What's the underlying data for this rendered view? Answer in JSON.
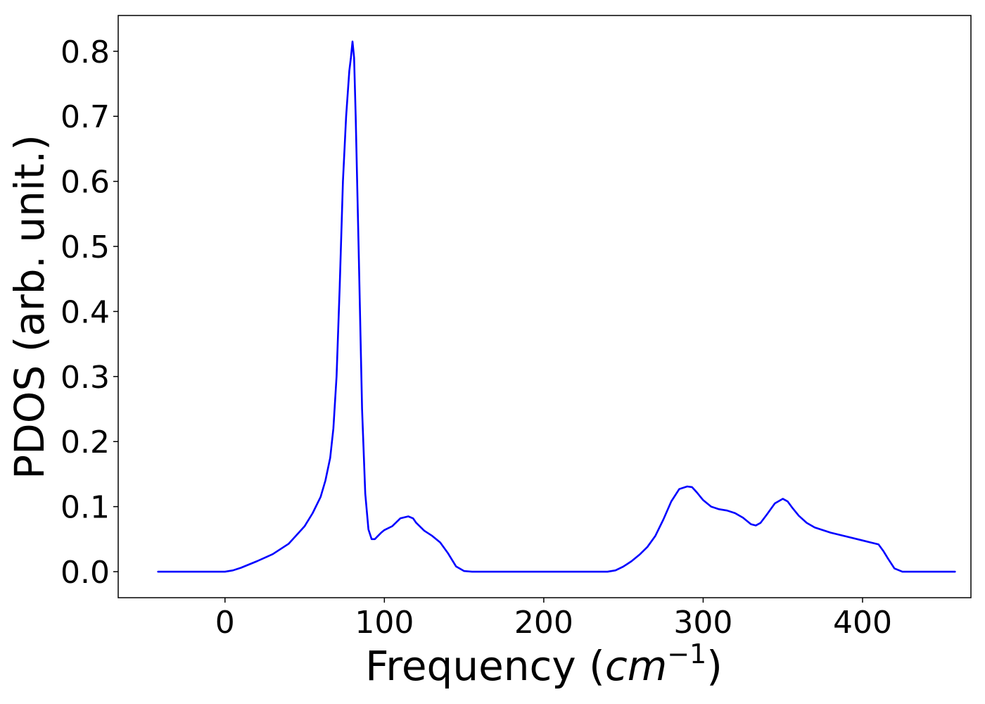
{
  "chart_data": {
    "type": "line",
    "title": "",
    "xlabel_prefix": "Frequency (",
    "xlabel_var": "cm",
    "xlabel_sup": "−1",
    "xlabel_suffix": ")",
    "ylabel": "PDOS (arb. unit.)",
    "xlim": [
      -67,
      468
    ],
    "ylim": [
      -0.04,
      0.855
    ],
    "xticks": [
      0,
      100,
      200,
      300,
      400
    ],
    "xtick_labels": [
      "0",
      "100",
      "200",
      "300",
      "400"
    ],
    "yticks": [
      0.0,
      0.1,
      0.2,
      0.3,
      0.4,
      0.5,
      0.6,
      0.7,
      0.8
    ],
    "ytick_labels": [
      "0.0",
      "0.1",
      "0.2",
      "0.3",
      "0.4",
      "0.5",
      "0.6",
      "0.7",
      "0.8"
    ],
    "grid": false,
    "line_color": "#0000ff",
    "series": [
      {
        "name": "",
        "x": [
          -42,
          -20,
          0,
          5,
          10,
          20,
          30,
          40,
          50,
          55,
          60,
          63,
          66,
          68,
          70,
          72,
          74,
          76,
          78,
          79,
          80,
          81,
          82,
          84,
          86,
          88,
          90,
          92,
          94,
          96,
          98,
          100,
          105,
          110,
          115,
          118,
          120,
          125,
          130,
          135,
          140,
          145,
          150,
          155,
          160,
          200,
          240,
          245,
          250,
          255,
          260,
          265,
          270,
          275,
          280,
          285,
          290,
          293,
          296,
          300,
          305,
          310,
          315,
          320,
          325,
          330,
          333,
          336,
          340,
          345,
          350,
          353,
          356,
          360,
          365,
          370,
          380,
          390,
          400,
          405,
          410,
          413,
          416,
          420,
          425,
          430,
          458
        ],
        "y": [
          0.0,
          0.0,
          0.0,
          0.002,
          0.006,
          0.016,
          0.027,
          0.043,
          0.07,
          0.09,
          0.115,
          0.14,
          0.175,
          0.22,
          0.3,
          0.44,
          0.6,
          0.7,
          0.77,
          0.79,
          0.815,
          0.79,
          0.7,
          0.48,
          0.25,
          0.12,
          0.065,
          0.05,
          0.05,
          0.055,
          0.06,
          0.064,
          0.07,
          0.082,
          0.085,
          0.082,
          0.075,
          0.063,
          0.055,
          0.045,
          0.028,
          0.008,
          0.001,
          0.0,
          0.0,
          0.0,
          0.0,
          0.002,
          0.008,
          0.016,
          0.026,
          0.038,
          0.055,
          0.08,
          0.108,
          0.127,
          0.131,
          0.13,
          0.122,
          0.11,
          0.1,
          0.096,
          0.094,
          0.09,
          0.083,
          0.073,
          0.071,
          0.075,
          0.088,
          0.105,
          0.112,
          0.108,
          0.098,
          0.086,
          0.075,
          0.068,
          0.06,
          0.054,
          0.048,
          0.045,
          0.042,
          0.032,
          0.02,
          0.005,
          0.0,
          0.0,
          0.0
        ]
      }
    ]
  }
}
